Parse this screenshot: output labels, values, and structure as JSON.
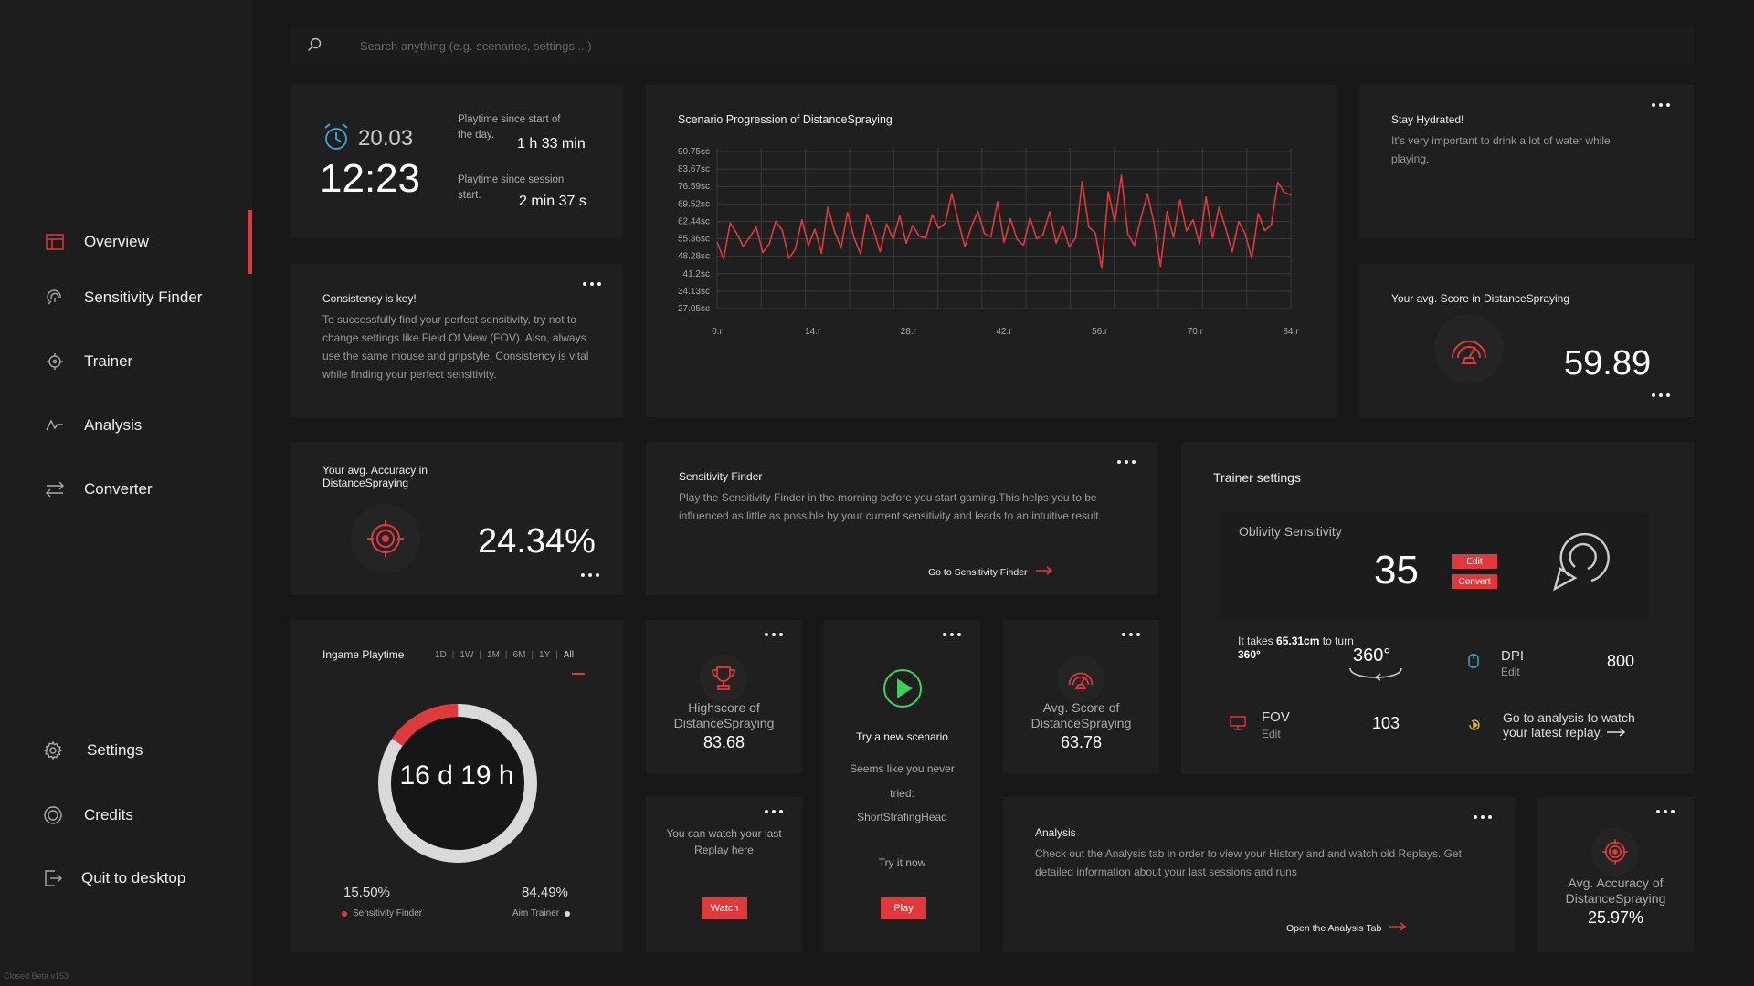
{
  "nav": {
    "items": [
      {
        "label": "Overview"
      },
      {
        "label": "Sensitivity Finder"
      },
      {
        "label": "Trainer"
      },
      {
        "label": "Analysis"
      },
      {
        "label": "Converter"
      }
    ],
    "bottom": [
      {
        "label": "Settings"
      },
      {
        "label": "Credits"
      },
      {
        "label": "Quit to desktop"
      }
    ],
    "version": "Closed Beta v153"
  },
  "search": {
    "placeholder": "Search anything (e.g. scenarios, settings ...)"
  },
  "clock": {
    "date": "20.03",
    "time": "12:23",
    "day_label": "Playtime since start of the day.",
    "day_value": "1 h 33 min",
    "session_label": "Playtime since session start.",
    "session_value": "2 min 37 s"
  },
  "consistency": {
    "title": "Consistency is key!",
    "body": "To successfully find your perfect sensitivity, try not to change settings like Field Of View (FOV). Also, always use the same mouse and gripstyle. Consistency is vital while finding your perfect sensitivity."
  },
  "accuracy_card": {
    "label": "Your avg. Accuracy in DistanceSpraying",
    "value": "24.34%"
  },
  "playtime": {
    "title": "Ingame Playtime",
    "ranges": [
      "1D",
      "1W",
      "1M",
      "6M",
      "1Y",
      "All"
    ],
    "selected": "All",
    "total": "16 d 19 h",
    "sens_pct": "15.50%",
    "sens_label": "Sensitivity Finder",
    "aim_pct": "84.49%",
    "aim_label": "Aim Trainer",
    "sens_fraction": 0.155,
    "colors": {
      "sens": "#e0393b",
      "aim": "#d9d9d9"
    }
  },
  "chart_data": {
    "type": "line",
    "title": "Scenario Progression of DistanceSpraying",
    "yticks": [
      "90.75sc",
      "83.67sc",
      "76.59sc",
      "69.52sc",
      "62.44sc",
      "55.36sc",
      "48.28sc",
      "41.2sc",
      "34.13sc",
      "27.05sc"
    ],
    "xticks": [
      "0.r",
      "14.r",
      "28.r",
      "42.r",
      "56.r",
      "70.r",
      "84.r"
    ],
    "ylim": [
      27.05,
      90.75
    ],
    "xlim": [
      0,
      84
    ],
    "grid": true,
    "color": "#e0393b",
    "series": [
      {
        "values": [
          54.1,
          47.2,
          61.8,
          57.6,
          52.4,
          55.9,
          60.2,
          49.8,
          53.3,
          62.5,
          58.7,
          47.4,
          51.2,
          63.1,
          52.6,
          59.3,
          49.5,
          68.2,
          58.4,
          51.7,
          66.1,
          55.8,
          49.2,
          65.3,
          58.9,
          50.1,
          61.4,
          55.2,
          64.7,
          53.6,
          60.8,
          56.4,
          55.7,
          65.2,
          59.6,
          61.8,
          73.8,
          62.4,
          52.2,
          60.3,
          66.5,
          57.5,
          56.1,
          70.4,
          53.9,
          63.5,
          55.2,
          52.8,
          63.9,
          55.4,
          57.1,
          66.3,
          53.6,
          60.8,
          52.1,
          55.7,
          78.6,
          60.2,
          57.8,
          43.4,
          74.4,
          62.1,
          81.2,
          57.3,
          52.7,
          63.8,
          73.6,
          62.1,
          44.1,
          66.4,
          55.9,
          71.2,
          58.6,
          63.1,
          53.2,
          72.4,
          55.8,
          68.3,
          59.7,
          50.1,
          62.4,
          57.5,
          47.3,
          65.6,
          58.7,
          60.9,
          78.3,
          74.2,
          73.1
        ]
      }
    ]
  },
  "hydrate": {
    "title": "Stay Hydrated!",
    "body": "It's very important to drink a lot of water while playing."
  },
  "score_card": {
    "label": "Your avg. Score in DistanceSpraying",
    "value": "59.89"
  },
  "sens_finder": {
    "title": "Sensitivity Finder",
    "body": "Play the Sensitivity Finder in the morning before you start gaming.This helps you to be influenced as little as possible by your current sensitivity and leads to an intuitive result.",
    "link": "Go to Sensitivity Finder"
  },
  "trainer": {
    "title": "Trainer settings",
    "sens_label": "Oblivity Sensitivity",
    "sens_value": "35",
    "edit": "Edit",
    "convert": "Convert",
    "cm_text": "It takes",
    "cm_value": "65.31cm",
    "cm_to": "to turn",
    "deg": "360°",
    "deg_icon": "360°",
    "dpi_label": "DPI",
    "dpi_edit": "Edit",
    "dpi_value": "800",
    "fov_label": "FOV",
    "fov_edit": "Edit",
    "fov_value": "103",
    "replay_text": "Go to analysis to watch your latest replay."
  },
  "highscore": {
    "label": "Highscore of DistanceSpraying",
    "value": "83.68"
  },
  "new_scenario": {
    "title": "Try a new scenario",
    "line1": "Seems like you never",
    "line2": "tried:",
    "scenario": "ShortStrafingHead",
    "cta": "Try it now",
    "button": "Play"
  },
  "avg_score": {
    "label": "Avg. Score of DistanceSpraying",
    "value": "63.78"
  },
  "replay": {
    "text": "You can watch your last Replay here",
    "button": "Watch"
  },
  "analysis": {
    "title": "Analysis",
    "body": "Check out the Analysis tab in order to view your History and and watch old Replays. Get detailed information about your last sessions and runs",
    "link": "Open the Analysis Tab"
  },
  "avg_accuracy": {
    "label": "Avg. Accuracy of DistanceSpraying",
    "value": "25.97%"
  }
}
